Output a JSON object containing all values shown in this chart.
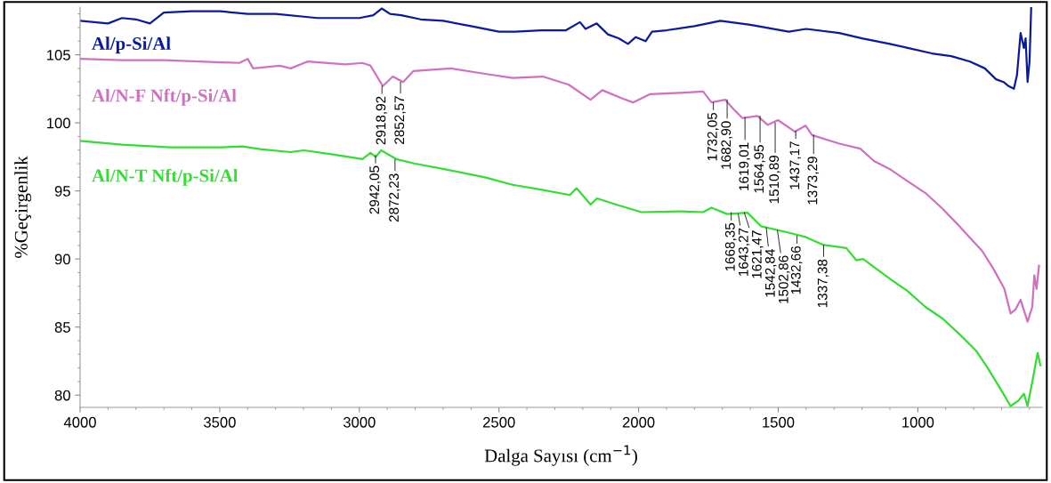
{
  "chart_data": {
    "type": "line",
    "xlabel": "Dalga Sayısı (cm$^{−1}$)",
    "ylabel": "%Geçirgenlik",
    "xlim": [
      4000,
      555
    ],
    "xticks": [
      4000,
      3500,
      3000,
      2500,
      2000,
      1500,
      1000
    ],
    "ylim": [
      79.1,
      108.5
    ],
    "yticks": [
      80,
      85,
      90,
      95,
      100,
      105
    ],
    "grid": false,
    "legend": false,
    "marker": "none",
    "line_style": "solid",
    "series": [
      {
        "name": "Al/p-Si/Al",
        "color": "#0a1aa0",
        "x": [
          4000,
          3900,
          3850,
          3800,
          3750,
          3700,
          3600,
          3500,
          3400,
          3300,
          3150,
          3000,
          2950,
          2920,
          2890,
          2850,
          2780,
          2700,
          2600,
          2500,
          2442,
          2350,
          2260,
          2210,
          2190,
          2150,
          2110,
          2070,
          2038,
          2010,
          1975,
          1952,
          1900,
          1800,
          1707,
          1600,
          1462,
          1400,
          1281,
          1200,
          1100,
          1036,
          950,
          880,
          813,
          760,
          720,
          693,
          675,
          656,
          645,
          632,
          620,
          614,
          607,
          600,
          594
        ],
        "values": [
          107.5,
          107.3,
          107.7,
          107.6,
          107.3,
          108.1,
          108.2,
          108.2,
          108.0,
          108.0,
          107.7,
          107.7,
          107.9,
          108.4,
          108.0,
          107.9,
          107.6,
          107.5,
          107.1,
          106.7,
          106.7,
          106.8,
          106.8,
          107.4,
          106.9,
          107.3,
          106.5,
          106.2,
          105.8,
          106.3,
          106.0,
          106.7,
          106.8,
          107.1,
          107.5,
          107.2,
          106.7,
          106.9,
          106.6,
          106.2,
          105.8,
          105.5,
          105.1,
          104.9,
          104.5,
          104.0,
          103.2,
          103.0,
          102.7,
          102.5,
          103.5,
          106.6,
          105.5,
          106.2,
          103.0,
          104.5,
          108.5
        ]
      },
      {
        "name": "Al/N-F Nft/p-Si/Al",
        "color": "#d070c0",
        "x": [
          4000,
          3850,
          3700,
          3430,
          3400,
          3380,
          3285,
          3246,
          3186,
          3050,
          2989,
          2960,
          2916,
          2880,
          2843,
          2807,
          2671,
          2550,
          2451,
          2343,
          2250,
          2172,
          2130,
          2060,
          2020,
          1960,
          1850,
          1769,
          1739,
          1690,
          1660,
          1628,
          1574,
          1538,
          1501,
          1440,
          1402,
          1379,
          1281,
          1206,
          1157,
          1100,
          1036,
          970,
          912,
          860,
          815,
          770,
          730,
          690,
          668,
          650,
          632,
          607,
          590,
          583,
          575,
          566
        ],
        "values": [
          104.7,
          104.6,
          104.6,
          104.4,
          104.7,
          104.0,
          104.2,
          104.0,
          104.5,
          104.3,
          104.4,
          104.2,
          102.7,
          103.4,
          103.0,
          103.8,
          104.0,
          103.6,
          103.3,
          103.4,
          102.8,
          101.7,
          102.4,
          101.8,
          101.5,
          102.1,
          102.2,
          102.3,
          101.5,
          101.7,
          101.0,
          100.35,
          100.5,
          99.85,
          100.2,
          99.35,
          99.8,
          99.1,
          98.47,
          98.1,
          97.2,
          96.6,
          95.7,
          94.8,
          93.7,
          92.6,
          91.6,
          90.6,
          89.3,
          87.8,
          86.0,
          86.3,
          87.0,
          85.4,
          86.5,
          88.8,
          87.8,
          89.5
        ]
      },
      {
        "name": "Al/N-T Nft/p-Si/Al",
        "color": "#33dd33",
        "x": [
          4000,
          3850,
          3676,
          3500,
          3418,
          3350,
          3246,
          3199,
          3100,
          2989,
          2960,
          2941,
          2922,
          2868,
          2800,
          2696,
          2550,
          2451,
          2350,
          2246,
          2222,
          2172,
          2149,
          2080,
          1990,
          1850,
          1769,
          1739,
          1683,
          1610,
          1561,
          1463,
          1400,
          1341,
          1256,
          1220,
          1196,
          1150,
          1097,
          1040,
          974,
          910,
          852,
          791,
          750,
          705,
          668,
          640,
          620,
          607,
          590,
          571,
          561
        ],
        "values": [
          98.67,
          98.4,
          98.2,
          98.2,
          98.27,
          98.05,
          97.85,
          97.98,
          97.7,
          97.34,
          97.8,
          97.5,
          97.98,
          97.34,
          97.0,
          96.6,
          96.0,
          95.45,
          95.1,
          94.7,
          95.2,
          94.0,
          94.45,
          94.0,
          93.44,
          93.5,
          93.44,
          93.77,
          93.3,
          93.4,
          92.4,
          91.94,
          91.6,
          91.05,
          90.8,
          89.9,
          90.0,
          89.3,
          88.5,
          87.7,
          86.5,
          85.6,
          84.5,
          83.25,
          82.0,
          80.5,
          79.2,
          79.6,
          80.1,
          79.2,
          81.0,
          83.1,
          82.2
        ]
      }
    ],
    "annotations": [
      {
        "text": "2918,92",
        "x": 2918.92,
        "y": 102.7
      },
      {
        "text": "2852,57",
        "x": 2852.57,
        "y": 103.0
      },
      {
        "text": "1732,05",
        "x": 1732.05,
        "y": 101.5
      },
      {
        "text": "1682,90",
        "x": 1682.9,
        "y": 101.7
      },
      {
        "text": "1619,01",
        "x": 1619.01,
        "y": 100.4
      },
      {
        "text": "1564,95",
        "x": 1564.95,
        "y": 100.5
      },
      {
        "text": "1510,89",
        "x": 1510.89,
        "y": 100.0
      },
      {
        "text": "1437,17",
        "x": 1437.17,
        "y": 99.4
      },
      {
        "text": "1373,29",
        "x": 1373.29,
        "y": 99.1
      },
      {
        "text": "2942,05",
        "x": 2942.05,
        "y": 97.6
      },
      {
        "text": "2872,23",
        "x": 2872.23,
        "y": 97.3
      },
      {
        "text": "1668,35",
        "x": 1668.35,
        "y": 93.4
      },
      {
        "text": "1643,27",
        "x": 1643.27,
        "y": 93.3
      },
      {
        "text": "1621,47",
        "x": 1621.47,
        "y": 93.4
      },
      {
        "text": "1542,84",
        "x": 1542.84,
        "y": 92.3
      },
      {
        "text": "1502,86",
        "x": 1502.86,
        "y": 92.1
      },
      {
        "text": "1432,66",
        "x": 1432.66,
        "y": 91.7
      },
      {
        "text": "1337,38",
        "x": 1337.38,
        "y": 91.0
      }
    ]
  }
}
